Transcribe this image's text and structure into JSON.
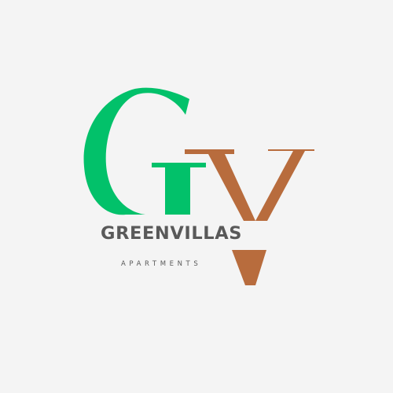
{
  "logo": {
    "monogram_alt": "GV",
    "wordmark": "GREENVILLAS",
    "tagline": "APARTMENTS"
  },
  "colors": {
    "background": "#f4f4f4",
    "green": "#02c16a",
    "brown": "#b86c3d",
    "text": "#595959"
  }
}
